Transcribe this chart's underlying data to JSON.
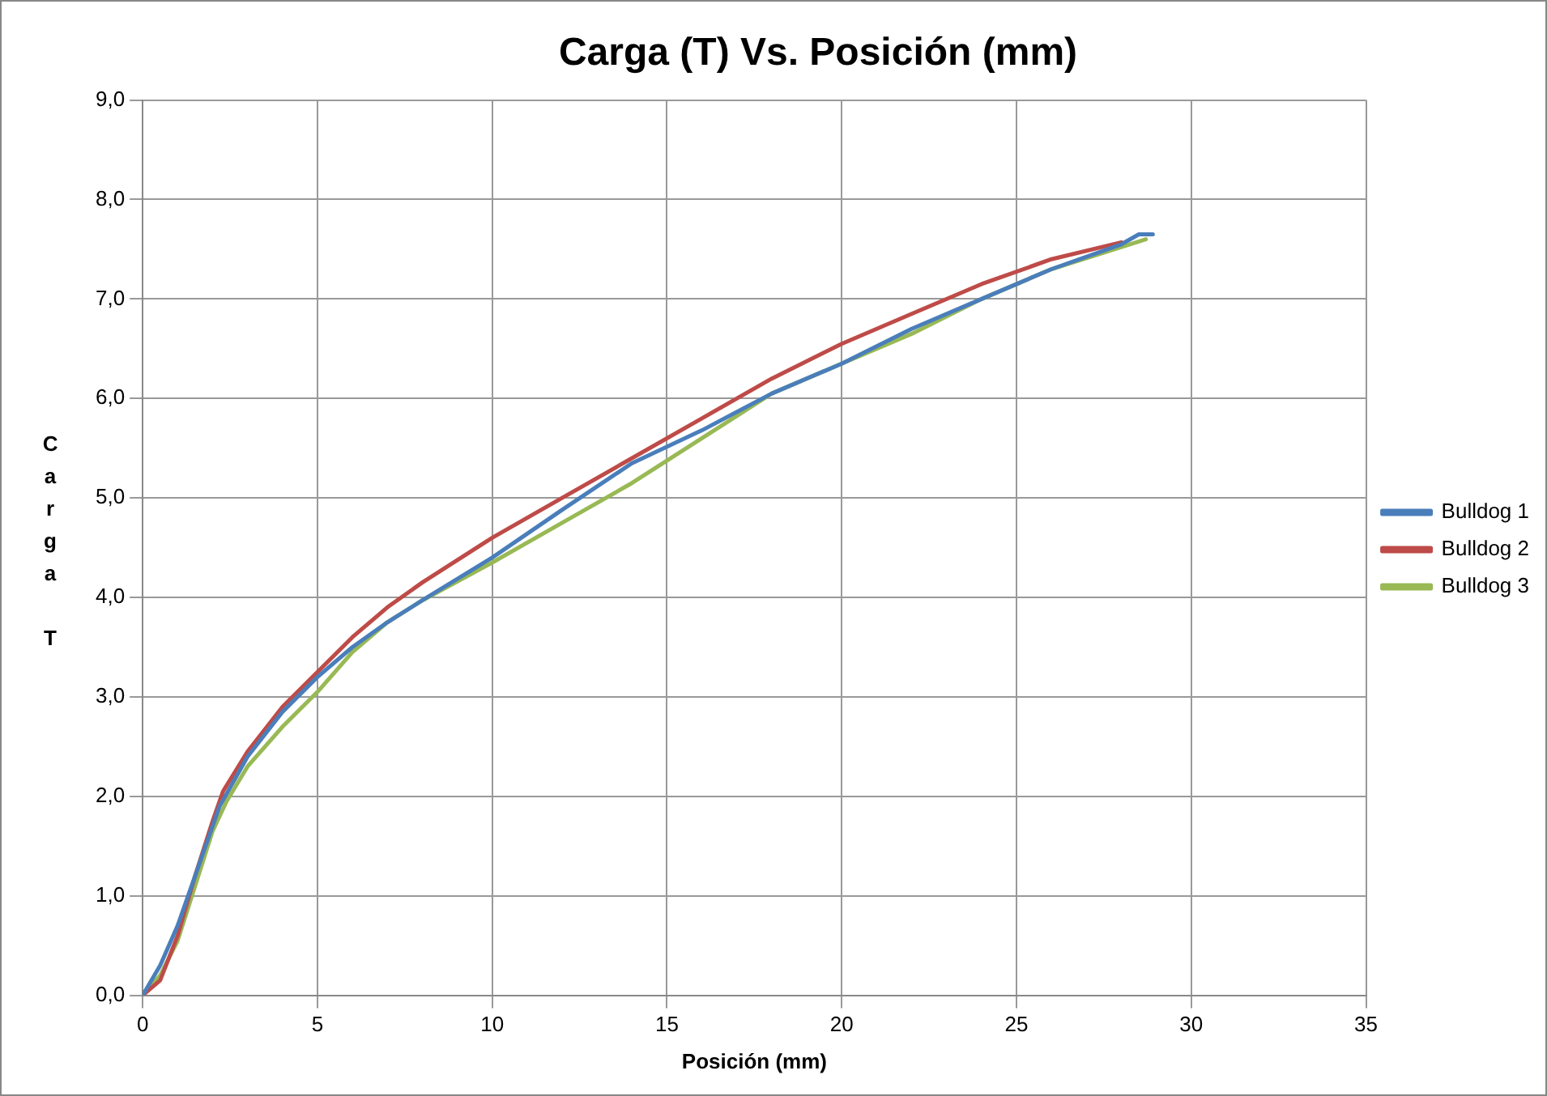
{
  "chart_data": {
    "type": "line",
    "title": "Carga (T) Vs. Posición (mm)",
    "xlabel": "Posición (mm)",
    "ylabel": "Carga T",
    "xlim": [
      0,
      35
    ],
    "xticks": [
      0,
      5,
      10,
      15,
      20,
      25,
      30,
      35
    ],
    "ylim": [
      0,
      9
    ],
    "yticks": [
      {
        "value": 0,
        "label": "0,0"
      },
      {
        "value": 1,
        "label": "1,0"
      },
      {
        "value": 2,
        "label": "2,0"
      },
      {
        "value": 3,
        "label": "3,0"
      },
      {
        "value": 4,
        "label": "4,0"
      },
      {
        "value": 5,
        "label": "5,0"
      },
      {
        "value": 6,
        "label": "6,0"
      },
      {
        "value": 7,
        "label": "7,0"
      },
      {
        "value": 8,
        "label": "8,0"
      },
      {
        "value": 9,
        "label": "9,0"
      }
    ],
    "grid": true,
    "legend": "right",
    "marker": "none",
    "line_style": "solid",
    "series": [
      {
        "name": "Bulldog 1",
        "color": "#4a7ebb",
        "x": [
          0,
          0.5,
          1,
          1.5,
          2,
          2.2,
          3,
          4,
          5,
          6,
          7,
          8,
          10,
          12,
          14,
          16,
          18,
          20,
          22,
          24,
          26,
          28,
          28.5,
          28.9
        ],
        "values": [
          0,
          0.3,
          0.7,
          1.2,
          1.7,
          1.9,
          2.4,
          2.85,
          3.2,
          3.5,
          3.75,
          3.97,
          4.4,
          4.88,
          5.35,
          5.68,
          6.05,
          6.35,
          6.7,
          7.0,
          7.3,
          7.55,
          7.65,
          7.65
        ]
      },
      {
        "name": "Bulldog 2",
        "color": "#be4b48",
        "x": [
          0,
          0.5,
          1,
          1.5,
          2,
          2.3,
          3,
          4,
          5,
          6,
          7,
          8,
          10,
          12,
          14,
          16,
          18,
          20,
          22,
          24,
          26,
          28
        ],
        "values": [
          0,
          0.15,
          0.6,
          1.2,
          1.75,
          2.05,
          2.45,
          2.9,
          3.25,
          3.6,
          3.9,
          4.15,
          4.6,
          5.0,
          5.4,
          5.8,
          6.2,
          6.55,
          6.85,
          7.15,
          7.4,
          7.57
        ]
      },
      {
        "name": "Bulldog 3",
        "color": "#98b954",
        "x": [
          0,
          0.5,
          1,
          1.5,
          2,
          2.4,
          3,
          4,
          5,
          6,
          7,
          8,
          10,
          12,
          14,
          16,
          18,
          20,
          22,
          24,
          26,
          28.7
        ],
        "values": [
          0,
          0.2,
          0.55,
          1.1,
          1.65,
          1.95,
          2.3,
          2.7,
          3.05,
          3.45,
          3.75,
          3.97,
          4.35,
          4.75,
          5.15,
          5.6,
          6.05,
          6.35,
          6.65,
          7.0,
          7.3,
          7.6
        ]
      }
    ]
  }
}
